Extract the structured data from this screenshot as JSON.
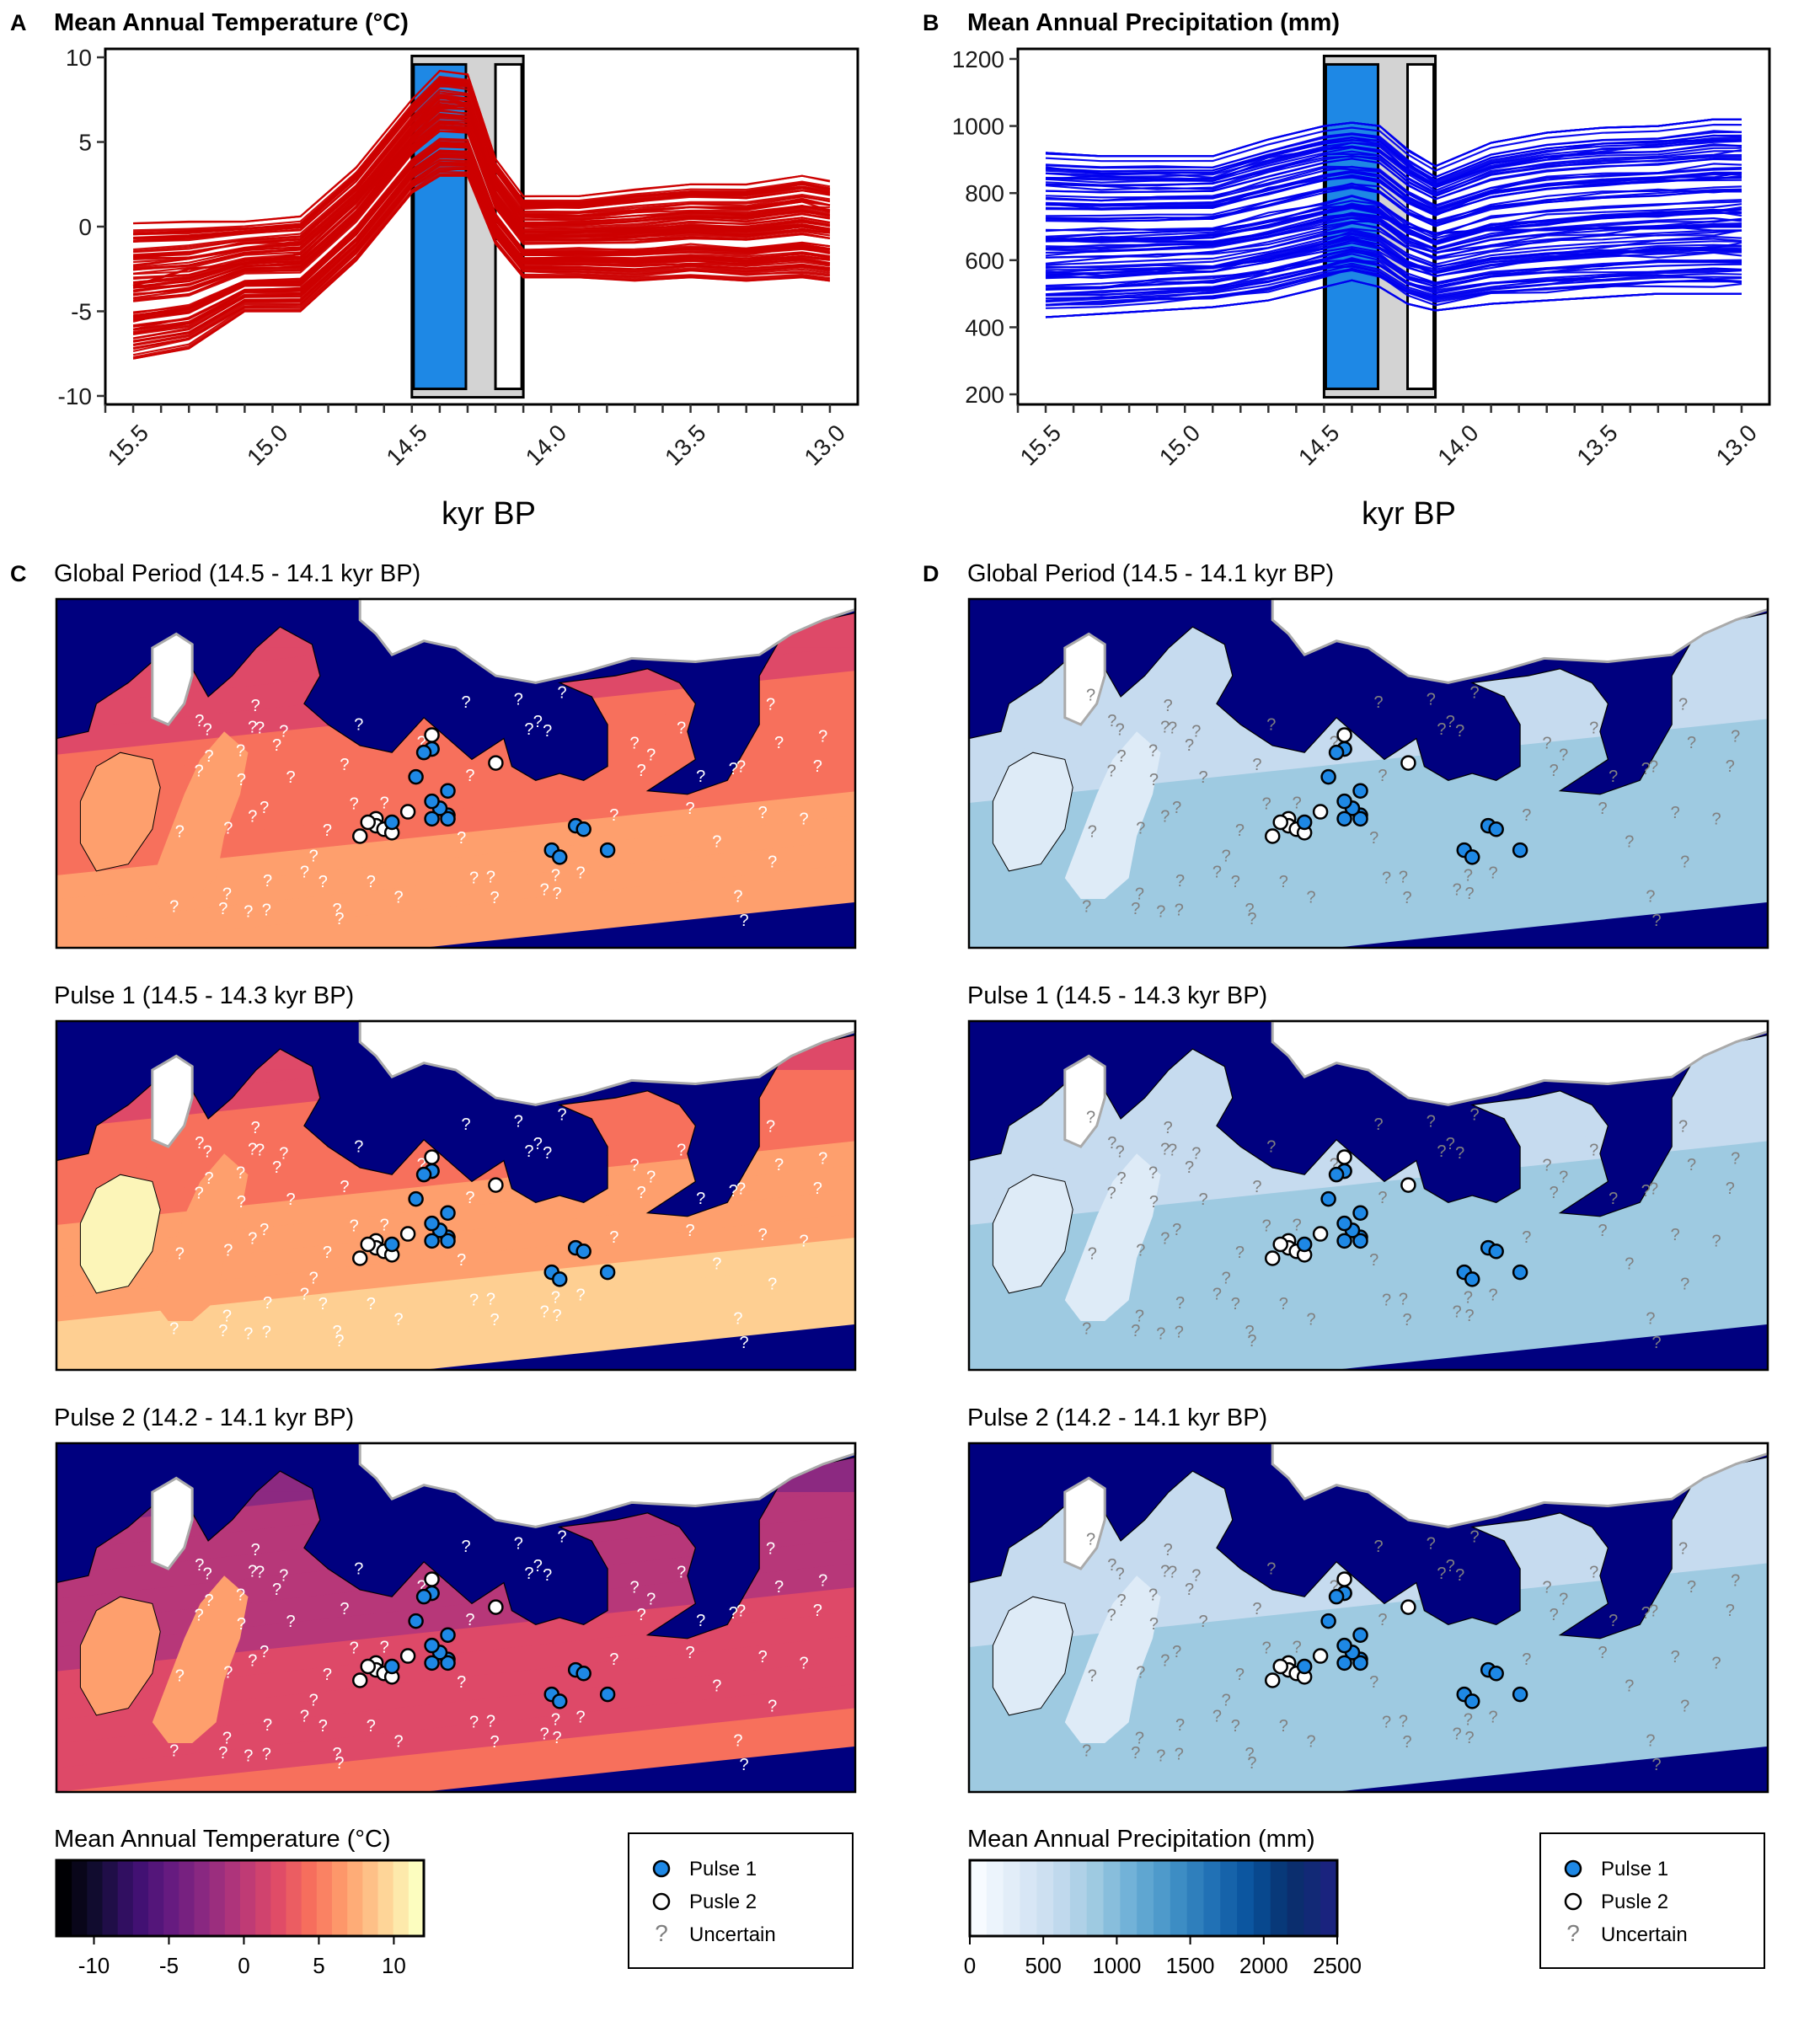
{
  "colors": {
    "temperature_line": "#cc0000",
    "precipitation_line": "#0000ee",
    "pulse1": "#1e88e5",
    "gap": "#d3d3d3",
    "pulse2": "#ffffff",
    "ocean": "#00007f",
    "ice": "#ffffff",
    "uncertain": "#808080"
  },
  "chart_data": [
    {
      "id": "A",
      "type": "line",
      "panel_letter": "A",
      "title": "Mean Annual Temperature (°C)",
      "xlabel": "kyr BP",
      "xlim": [
        15.6,
        12.9
      ],
      "xticks": [
        "15.5",
        "15.0",
        "14.5",
        "14.0",
        "13.5",
        "13.0"
      ],
      "ylim": [
        -10.5,
        10.5
      ],
      "yticks": [
        "10",
        "5",
        "0",
        "-5",
        "-10"
      ],
      "x": [
        15.5,
        15.3,
        15.1,
        14.9,
        14.7,
        14.5,
        14.4,
        14.3,
        14.2,
        14.1,
        13.9,
        13.7,
        13.5,
        13.3,
        13.1,
        13.0
      ],
      "series_summary": "about 90 simulated trajectories",
      "series_mean": [
        -3.5,
        -2.5,
        -2.2,
        -1.6,
        1.5,
        5.2,
        7.0,
        7.2,
        2.0,
        -0.6,
        -0.3,
        -0.3,
        -0.1,
        -0.2,
        0.1,
        -0.2
      ],
      "series_min": [
        -7.8,
        -7.2,
        -5.0,
        -5.0,
        -2.0,
        2.0,
        3.0,
        3.0,
        -1.0,
        -3.0,
        -3.0,
        -3.2,
        -3.0,
        -3.2,
        -3.0,
        -3.2
      ],
      "series_max": [
        0.2,
        0.3,
        0.3,
        0.6,
        3.5,
        7.5,
        9.2,
        9.0,
        4.0,
        1.8,
        1.8,
        2.2,
        2.5,
        2.5,
        3.0,
        2.7
      ],
      "shading": {
        "pulse1": [
          14.5,
          14.3
        ],
        "gap": [
          14.3,
          14.2
        ],
        "pulse2": [
          14.2,
          14.1
        ]
      }
    },
    {
      "id": "B",
      "type": "line",
      "panel_letter": "B",
      "title": "Mean Annual Precipitation (mm)",
      "xlabel": "kyr BP",
      "xlim": [
        15.6,
        12.9
      ],
      "xticks": [
        "15.5",
        "15.0",
        "14.5",
        "14.0",
        "13.5",
        "13.0"
      ],
      "ylim": [
        170,
        1230
      ],
      "yticks": [
        "1200",
        "1000",
        "800",
        "600",
        "400",
        "200"
      ],
      "x": [
        15.5,
        15.3,
        15.1,
        14.9,
        14.7,
        14.5,
        14.4,
        14.3,
        14.2,
        14.1,
        13.9,
        13.7,
        13.5,
        13.3,
        13.1,
        13.0
      ],
      "series_summary": "about 90 simulated trajectories",
      "series_mean": [
        660,
        660,
        655,
        655,
        680,
        720,
        740,
        730,
        700,
        680,
        690,
        690,
        695,
        695,
        700,
        700
      ],
      "series_min": [
        430,
        440,
        450,
        460,
        480,
        520,
        540,
        520,
        470,
        450,
        470,
        480,
        490,
        500,
        500,
        500
      ],
      "series_max": [
        920,
        910,
        910,
        910,
        960,
        1000,
        1010,
        1000,
        930,
        880,
        950,
        980,
        995,
        1000,
        1020,
        1020
      ],
      "shading": {
        "pulse1": [
          14.5,
          14.3
        ],
        "gap": [
          14.3,
          14.2
        ],
        "pulse2": [
          14.2,
          14.1
        ]
      }
    }
  ],
  "maps": {
    "C": {
      "panel_letter": "C",
      "titles": [
        "Global Period (14.5 - 14.1 kyr BP)",
        "Pulse 1 (14.5 - 14.3 kyr BP)",
        "Pulse 2 (14.2 - 14.1 kyr BP)"
      ],
      "colorbar": {
        "title": "Mean Annual Temperature (°C)",
        "ticks": [
          "-10",
          "-5",
          "0",
          "5",
          "10"
        ],
        "range": [
          -12.5,
          12.0
        ],
        "palette": [
          "#000004",
          "#140e36",
          "#3b0f70",
          "#641a80",
          "#8c2981",
          "#b73779",
          "#de4968",
          "#f7705c",
          "#fe9f6d",
          "#fecf92",
          "#fcfdbf"
        ]
      }
    },
    "D": {
      "panel_letter": "D",
      "titles": [
        "Global Period (14.5 - 14.1 kyr BP)",
        "Pulse 1 (14.5 - 14.3 kyr BP)",
        "Pulse 2 (14.2 - 14.1 kyr BP)"
      ],
      "colorbar": {
        "title": "Mean Annual Precipitation (mm)",
        "ticks": [
          "0",
          "500",
          "1000",
          "1500",
          "2000",
          "2500"
        ],
        "range": [
          0,
          2500
        ],
        "palette": [
          "#f7fbff",
          "#deebf7",
          "#c6dbef",
          "#9ecae1",
          "#6baed6",
          "#4292c6",
          "#2171b5",
          "#08519c",
          "#08306b",
          "#1a237e"
        ]
      }
    }
  },
  "legend": {
    "items": [
      {
        "label": "Pulse 1",
        "kind": "pulse1"
      },
      {
        "label": "Pusle 2",
        "kind": "pulse2"
      },
      {
        "label": "Uncertain",
        "kind": "uncertain"
      }
    ],
    "uncertain_glyph": "?"
  }
}
